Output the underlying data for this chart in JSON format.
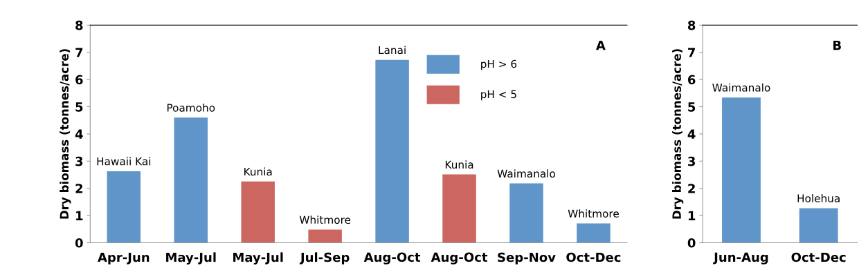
{
  "chart_data": [
    {
      "type": "bar",
      "title": "A",
      "ylabel": "Dry biomass (tonnes/acre)",
      "categories": [
        "Apr-Jun",
        "May-Jul",
        "May-Jul",
        "Jul-Sep",
        "Aug-Oct",
        "Aug-Oct",
        "Sep-Nov",
        "Oct-Dec"
      ],
      "series": [
        {
          "name": "pH > 6",
          "color": "#6095c9",
          "values": [
            2.63,
            4.6,
            null,
            null,
            6.72,
            null,
            2.18,
            0.71
          ],
          "value_labels": [
            "Hawaii Kai",
            "Poamoho",
            null,
            null,
            "Lanai",
            null,
            "Waimanalo",
            "Whitmore"
          ]
        },
        {
          "name": "pH < 5",
          "color": "#cc6660",
          "values": [
            null,
            null,
            2.25,
            0.48,
            null,
            2.51,
            null,
            null
          ],
          "value_labels": [
            null,
            null,
            "Kunia",
            "Whitmore",
            null,
            "Kunia",
            null,
            null
          ]
        }
      ],
      "ylim": [
        0,
        8
      ],
      "yticks": [
        0,
        1,
        2,
        3,
        4,
        5,
        6,
        7,
        8
      ],
      "legend": "top right",
      "grid": false
    },
    {
      "type": "bar",
      "title": "B",
      "ylabel": "Dry biomass (tonnes/acre)",
      "categories": [
        "Jun-Aug",
        "Oct-Dec"
      ],
      "series": [
        {
          "color": "#6095c9",
          "values": [
            5.34,
            1.27
          ],
          "value_labels": [
            "Waimanalo",
            "Holehua"
          ]
        }
      ],
      "ylim": [
        0,
        8
      ],
      "yticks": [
        0,
        1,
        2,
        3,
        4,
        5,
        6,
        7,
        8
      ],
      "grid": false
    }
  ]
}
